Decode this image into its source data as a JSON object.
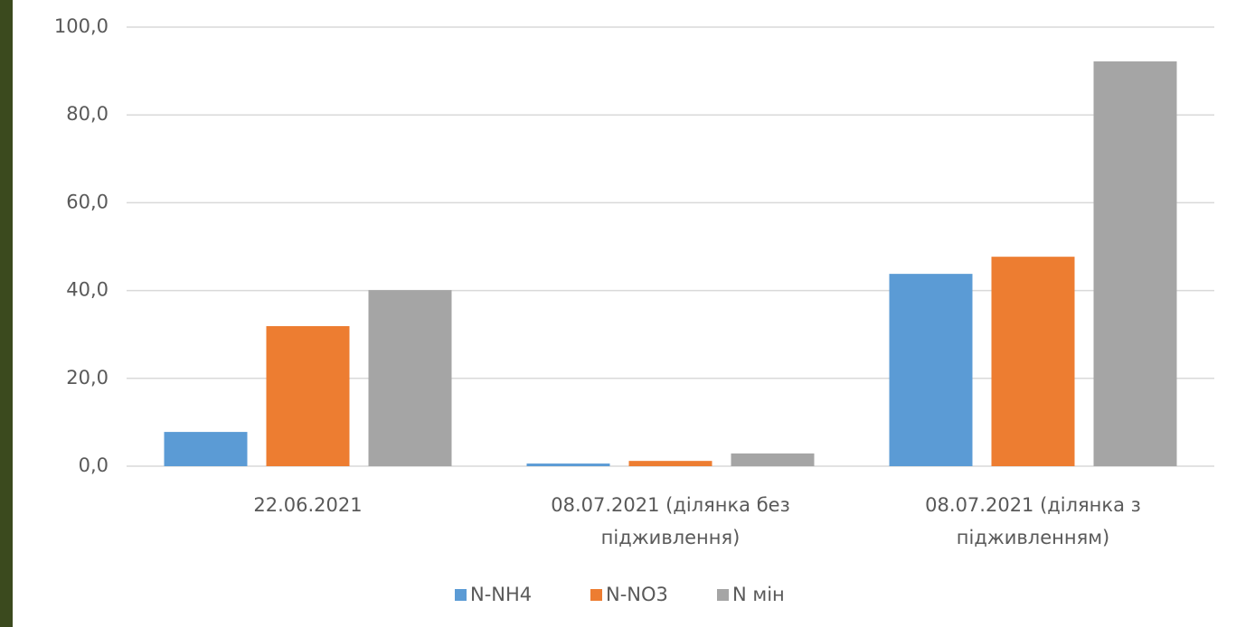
{
  "chart_data": {
    "type": "bar",
    "categories": [
      "22.06.2021",
      "08.07.2021 (ділянка без підживлення)",
      "08.07.2021 (ділянка з підживленням)"
    ],
    "series": [
      {
        "name": "N-NH4",
        "color": "#5b9bd5",
        "values": [
          7.8,
          0.6,
          43.8
        ]
      },
      {
        "name": "N-NO3",
        "color": "#ed7d31",
        "values": [
          31.9,
          1.2,
          47.7
        ]
      },
      {
        "name": "N мін",
        "color": "#a5a5a5",
        "values": [
          40.1,
          2.9,
          92.2
        ]
      }
    ],
    "ylim": [
      0,
      100
    ],
    "yticks": [
      {
        "value": 0,
        "label": "0,0"
      },
      {
        "value": 20,
        "label": "20,0"
      },
      {
        "value": 40,
        "label": "40,0"
      },
      {
        "value": 60,
        "label": "60,0"
      },
      {
        "value": 80,
        "label": "80,0"
      },
      {
        "value": 100,
        "label": "100,0"
      }
    ],
    "grid": true,
    "legend": "bottom"
  }
}
